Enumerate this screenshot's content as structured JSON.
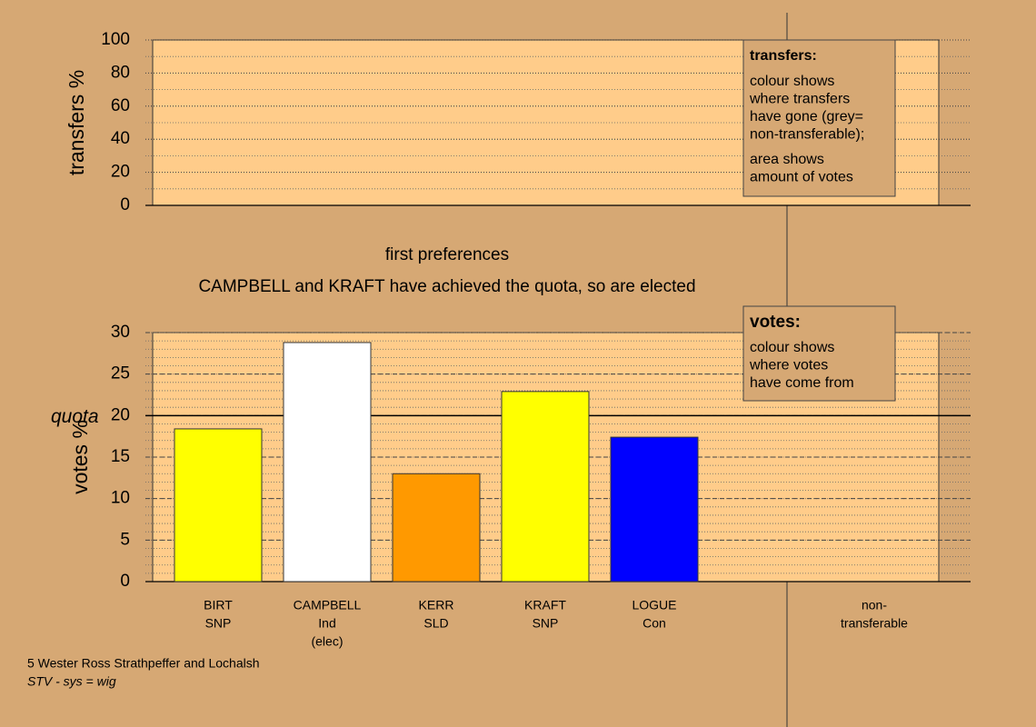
{
  "chart_data": [
    {
      "type": "bar",
      "ylabel": "transfers %",
      "ylim": [
        0,
        100
      ],
      "yticks": [
        0,
        20,
        40,
        60,
        80,
        100
      ],
      "minor_grid": 10,
      "note": {
        "title": "transfers:",
        "paragraphs": [
          [
            "colour shows",
            "where transfers",
            "have gone (grey=",
            "non-transferable);"
          ],
          [
            "area shows",
            "amount of votes"
          ]
        ]
      }
    },
    {
      "type": "bar",
      "title": "first preferences",
      "subtitle": "CAMPBELL and KRAFT have achieved the quota, so are elected",
      "ylabel": "votes %",
      "ylim": [
        0,
        30
      ],
      "yticks": [
        0,
        5,
        10,
        15,
        20,
        25,
        30
      ],
      "minor_grid": 1,
      "quota": {
        "label": "quota",
        "value": 20
      },
      "categories": [
        [
          "BIRT",
          "SNP"
        ],
        [
          "CAMPBELL",
          "Ind",
          "(elec)"
        ],
        [
          "KERR",
          "SLD"
        ],
        [
          "KRAFT",
          "SNP"
        ],
        [
          "LOGUE",
          "Con"
        ]
      ],
      "values": [
        18.4,
        28.8,
        13.0,
        22.9,
        17.4
      ],
      "colors": [
        "#ffff00",
        "#ffffff",
        "#ff9900",
        "#ffff00",
        "#0000ff"
      ],
      "nontransferable_label": [
        "non-",
        "transferable"
      ],
      "note": {
        "title": "votes:",
        "paragraphs": [
          [
            "colour shows",
            "where votes",
            "have come from"
          ]
        ]
      }
    }
  ],
  "footer": [
    "5 Wester Ross Strathpeffer and Lochalsh",
    "STV - sys = wig"
  ]
}
